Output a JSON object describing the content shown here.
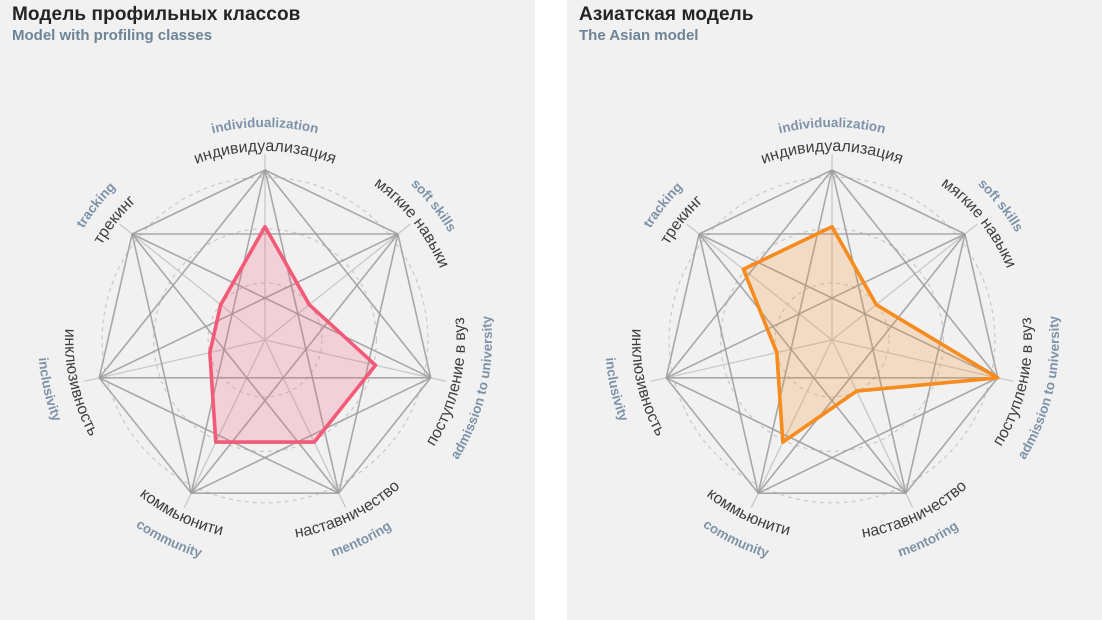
{
  "page": {
    "background": "#ffffff",
    "panel_background": "#f1f1f2"
  },
  "palette": {
    "web_line": "#9c9c9c",
    "spoke_line": "#c8c8c8",
    "ring_dashed": "#c9c9c9",
    "axis_label_ru": "#3e3e3e",
    "axis_label_en": "#7e93a8",
    "title": "#242424",
    "subtitle": "#6d8496",
    "left_series": "#f25a78",
    "right_series": "#f68b1f"
  },
  "chart_data": [
    {
      "type": "radar",
      "title": "Модель профильных классов",
      "subtitle": "Model with profiling classes",
      "color": "#f25a78",
      "axes_ru": [
        "индивидуализация",
        "мягкие навыки",
        "поступление в вуз",
        "наставничество",
        "коммьюнити",
        "инклюзивность",
        "трекинг"
      ],
      "axes_en": [
        "individualization",
        "soft skills",
        "admission to university",
        "mentoring",
        "community",
        "inclusivity",
        "tracking"
      ],
      "axes_slug": [
        "individualization",
        "soft-skills",
        "admission-to-university",
        "mentoring",
        "community",
        "inclusivity",
        "tracking"
      ],
      "values": [
        2,
        1,
        2,
        2,
        2,
        1,
        1
      ],
      "value_max": 3,
      "grid": {
        "rings": 3,
        "ring_style": "dashed-circles",
        "web": "complete-graph-of-7-vertices",
        "legend": "none"
      }
    },
    {
      "type": "radar",
      "title": "Азиатская модель",
      "subtitle": "The Asian model",
      "color": "#f68b1f",
      "axes_ru": [
        "индивидуализация",
        "мягкие навыки",
        "поступление в вуз",
        "наставничество",
        "коммьюнити",
        "инклюзивность",
        "трекинг"
      ],
      "axes_en": [
        "individualization",
        "soft skills",
        "admission to university",
        "mentoring",
        "community",
        "inclusivity",
        "tracking"
      ],
      "axes_slug": [
        "individualization",
        "soft-skills",
        "admission-to-university",
        "mentoring",
        "community",
        "inclusivity",
        "tracking"
      ],
      "values": [
        2,
        1,
        3,
        1,
        2,
        1,
        2
      ],
      "value_max": 3,
      "grid": {
        "rings": 3,
        "ring_style": "dashed-circles",
        "web": "complete-graph-of-7-vertices",
        "legend": "none"
      }
    }
  ]
}
